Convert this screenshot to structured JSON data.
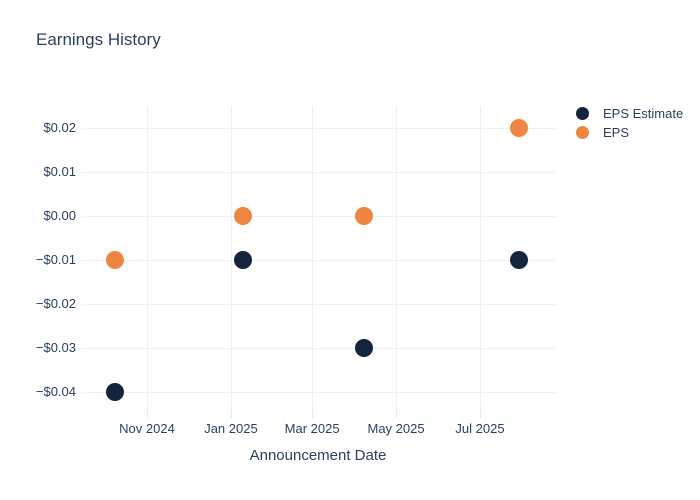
{
  "chart": {
    "title": "Earnings History",
    "x_axis_title": "Announcement Date",
    "font_color": "#2a3f5f",
    "grid_color": "#ebf0f8",
    "background_color": "#ffffff"
  },
  "legend": {
    "position": "right",
    "items": [
      {
        "label": "EPS Estimate",
        "color": "#14243d"
      },
      {
        "label": "EPS",
        "color": "#ef8640"
      }
    ]
  },
  "chart_data": {
    "type": "scatter",
    "title": "Earnings History",
    "xlabel": "Announcement Date",
    "ylabel": "",
    "grid": true,
    "legend_position": "right",
    "x_range": [
      "2024-09-14",
      "2025-08-25"
    ],
    "y_range": [
      -0.0455,
      0.0255
    ],
    "x_ticks": [
      {
        "label": "Nov 2024",
        "date": "2024-11-01"
      },
      {
        "label": "Jan 2025",
        "date": "2025-01-01"
      },
      {
        "label": "Mar 2025",
        "date": "2025-03-01"
      },
      {
        "label": "May 2025",
        "date": "2025-05-01"
      },
      {
        "label": "Jul 2025",
        "date": "2025-07-01"
      }
    ],
    "y_ticks": [
      {
        "label": "$0.02",
        "value": 0.02
      },
      {
        "label": "$0.01",
        "value": 0.01
      },
      {
        "label": "$0.00",
        "value": 0.0
      },
      {
        "label": "−$0.01",
        "value": -0.01
      },
      {
        "label": "−$0.02",
        "value": -0.02
      },
      {
        "label": "−$0.03",
        "value": -0.03
      },
      {
        "label": "−$0.04",
        "value": -0.04
      }
    ],
    "series": [
      {
        "name": "EPS Estimate",
        "color": "#14243d",
        "marker": "circle",
        "points": [
          {
            "date": "2024-10-09",
            "value": -0.04
          },
          {
            "date": "2025-01-10",
            "value": -0.01
          },
          {
            "date": "2025-04-08",
            "value": -0.03
          },
          {
            "date": "2025-07-29",
            "value": -0.01
          }
        ]
      },
      {
        "name": "EPS",
        "color": "#ef8640",
        "marker": "circle",
        "points": [
          {
            "date": "2024-10-09",
            "value": -0.01
          },
          {
            "date": "2025-01-10",
            "value": 0.0
          },
          {
            "date": "2025-04-08",
            "value": 0.0
          },
          {
            "date": "2025-07-29",
            "value": 0.02
          }
        ]
      }
    ]
  }
}
